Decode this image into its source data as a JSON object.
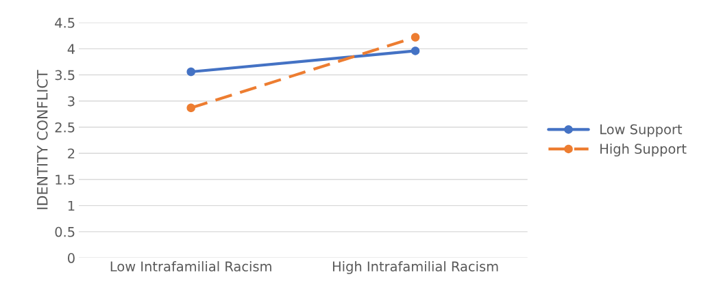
{
  "chart_data": {
    "type": "line",
    "ylabel": "IDENTITY CONFLICT",
    "categories": [
      "Low Intrafamilial Racism",
      "High Intrafamilial Racism"
    ],
    "series": [
      {
        "name": "Low Support",
        "color": "#4472c4",
        "values": [
          3.56,
          3.96
        ],
        "line_style": "solid"
      },
      {
        "name": "High Support",
        "color": "#ed7d31",
        "values": [
          2.87,
          4.22
        ],
        "line_style": "dashed"
      }
    ],
    "ylim": [
      0,
      4.5
    ],
    "yticks": [
      0,
      0.5,
      1,
      1.5,
      2,
      2.5,
      3,
      3.5,
      4,
      4.5
    ],
    "grid": "y",
    "legend": "right",
    "marker": "circle"
  }
}
